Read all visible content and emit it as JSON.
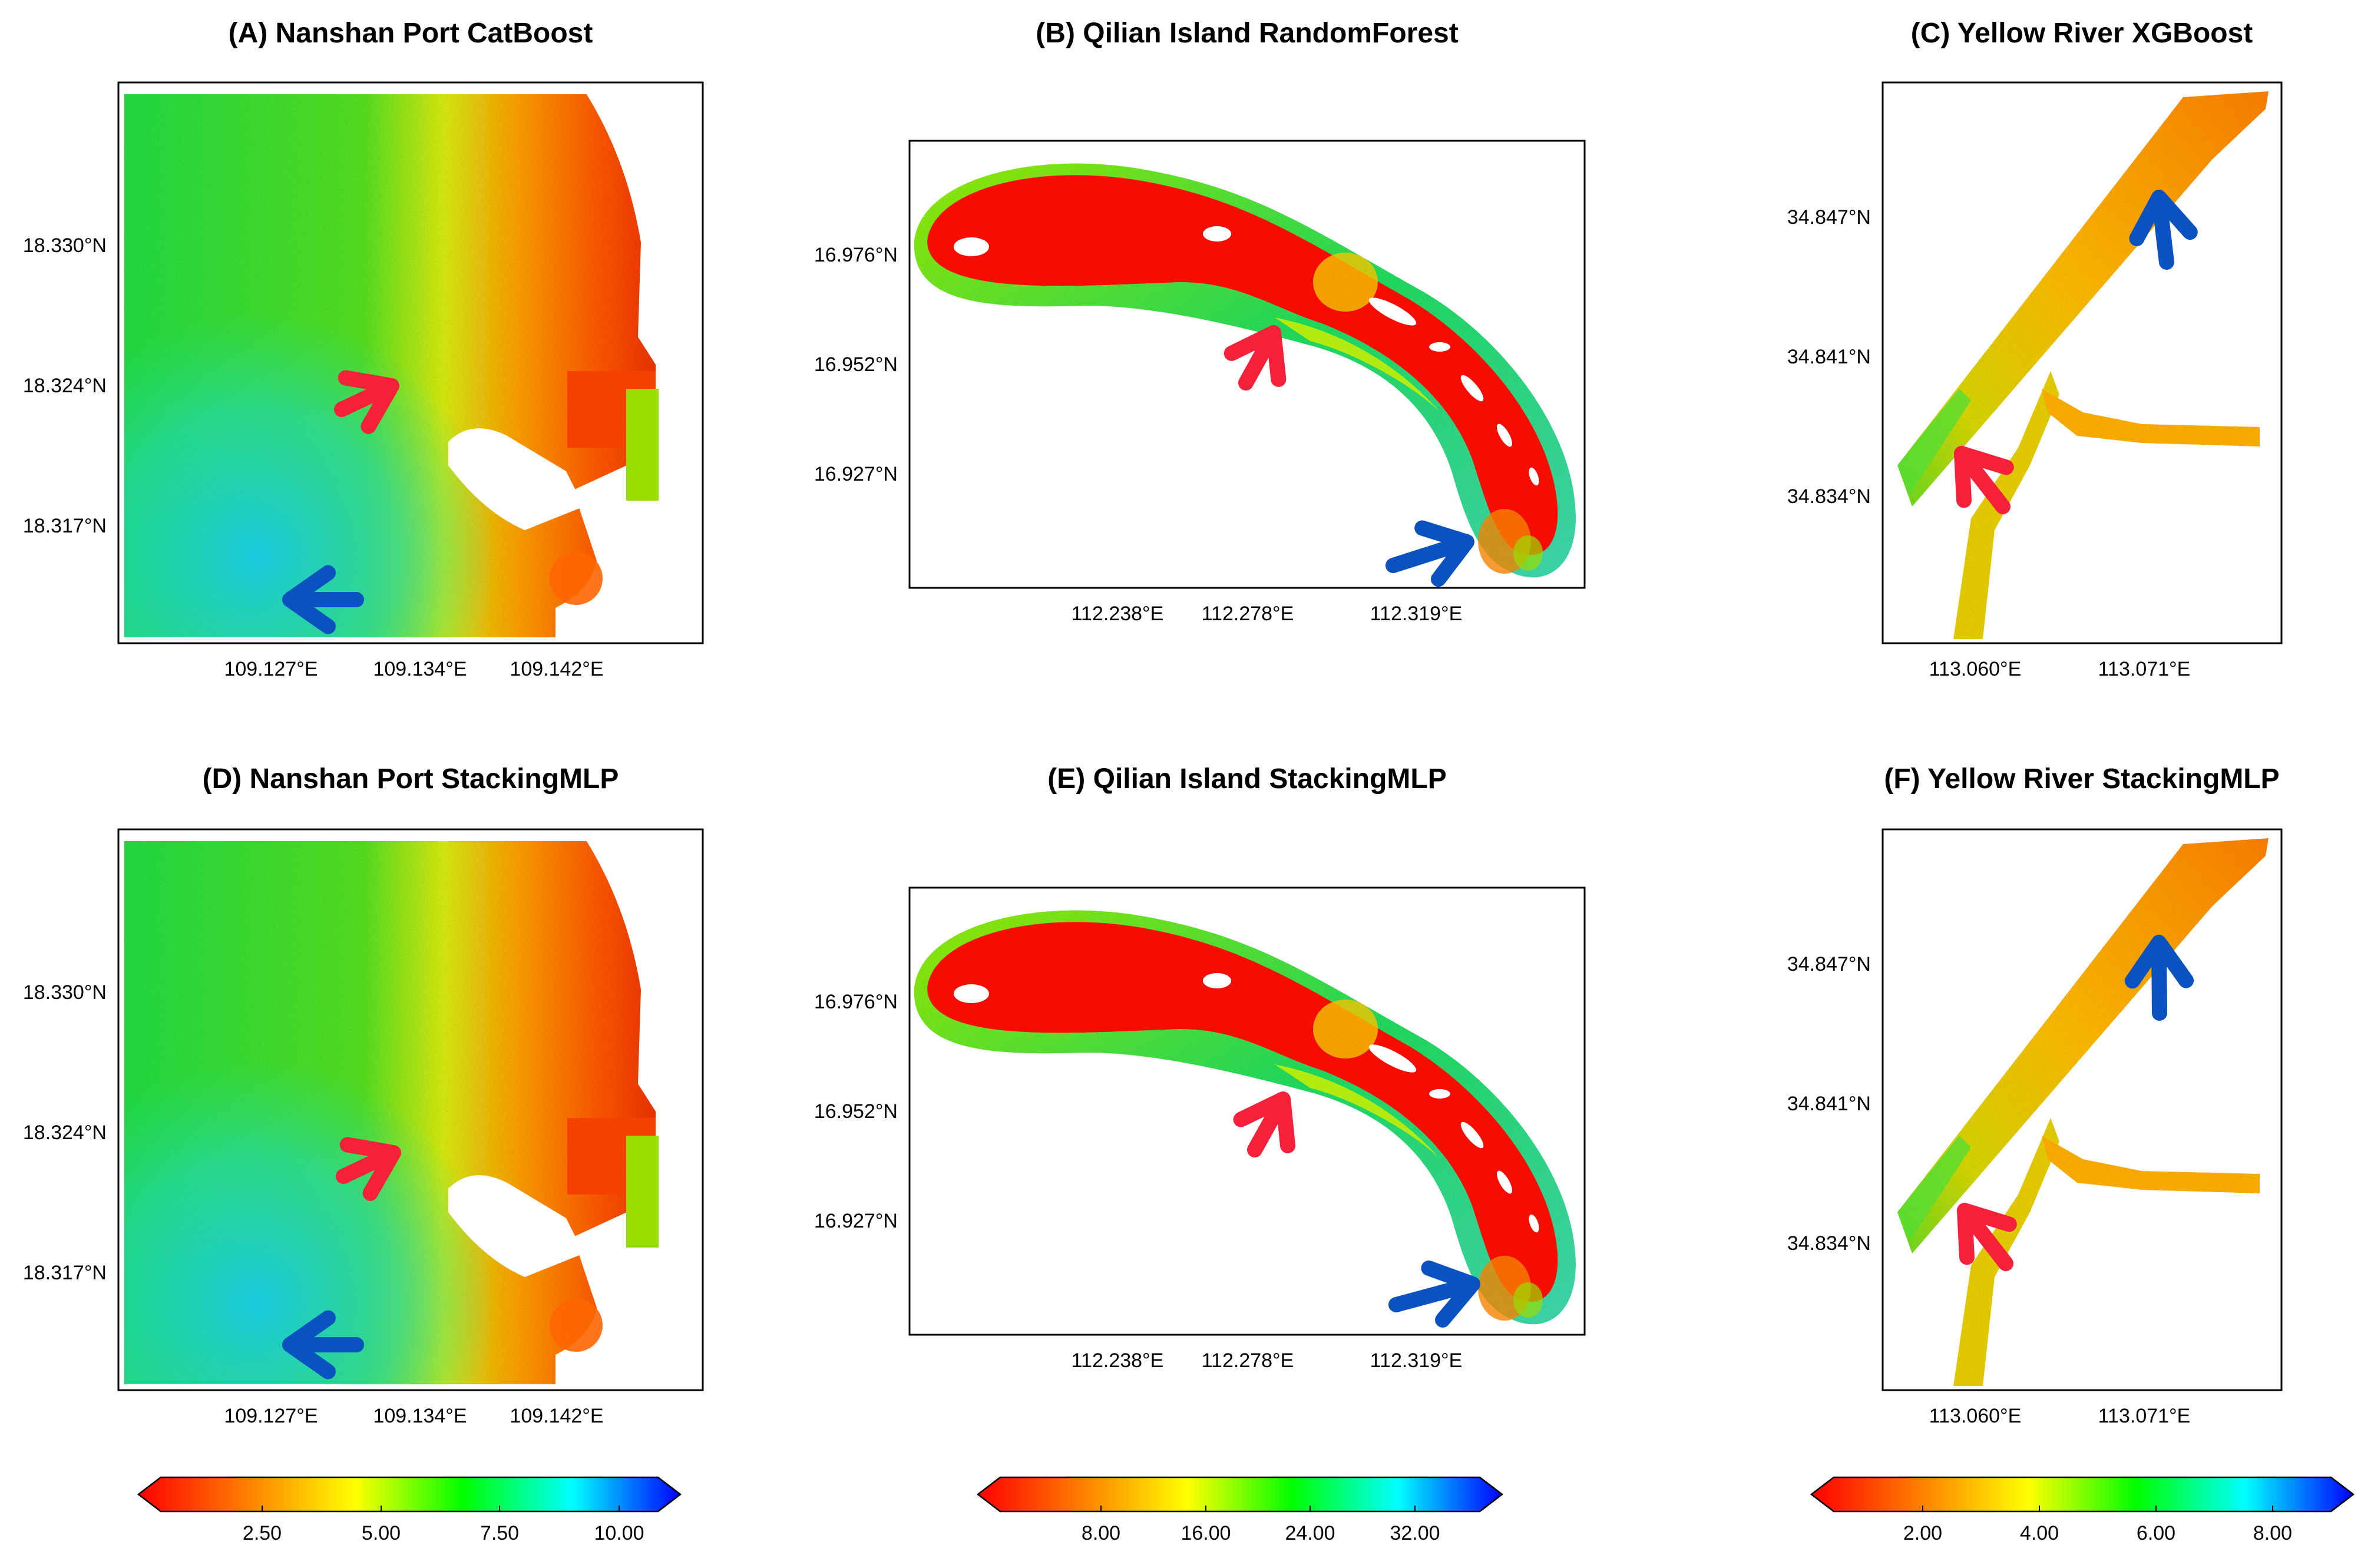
{
  "colors": {
    "scale": [
      "#ff0000",
      "#ff7f00",
      "#ffff00",
      "#00ff00",
      "#00ffff",
      "#0000ff"
    ],
    "red_arrow": "#f5203a",
    "blue_arrow": "#0a52c0"
  },
  "panels": [
    {
      "id": "A",
      "title": "(A) Nanshan Port CatBoost",
      "region": "nanshan",
      "x_ticks": [
        "109.127°E",
        "109.134°E",
        "109.142°E"
      ],
      "y_ticks": [
        "18.330°N",
        "18.324°N",
        "18.317°N"
      ],
      "arrows": [
        {
          "color": "red",
          "icon": "arrow-icon"
        },
        {
          "color": "blue",
          "icon": "arrow-icon"
        }
      ]
    },
    {
      "id": "B",
      "title": "(B) Qilian Island RandomForest",
      "region": "qilian",
      "x_ticks": [
        "112.238°E",
        "112.278°E",
        "112.319°E"
      ],
      "y_ticks": [
        "16.976°N",
        "16.952°N",
        "16.927°N"
      ],
      "arrows": [
        {
          "color": "red",
          "icon": "arrow-icon"
        },
        {
          "color": "blue",
          "icon": "arrow-icon"
        }
      ]
    },
    {
      "id": "C",
      "title": "(C) Yellow River XGBoost",
      "region": "yellow",
      "x_ticks": [
        "113.060°E",
        "113.071°E"
      ],
      "y_ticks": [
        "34.847°N",
        "34.841°N",
        "34.834°N"
      ],
      "arrows": [
        {
          "color": "red",
          "icon": "arrow-icon"
        },
        {
          "color": "blue",
          "icon": "arrow-icon"
        }
      ]
    },
    {
      "id": "D",
      "title": "(D) Nanshan Port StackingMLP",
      "region": "nanshan",
      "x_ticks": [
        "109.127°E",
        "109.134°E",
        "109.142°E"
      ],
      "y_ticks": [
        "18.330°N",
        "18.324°N",
        "18.317°N"
      ],
      "arrows": [
        {
          "color": "red",
          "icon": "arrow-icon"
        },
        {
          "color": "blue",
          "icon": "arrow-icon"
        }
      ]
    },
    {
      "id": "E",
      "title": "(E) Qilian Island StackingMLP",
      "region": "qilian",
      "x_ticks": [
        "112.238°E",
        "112.278°E",
        "112.319°E"
      ],
      "y_ticks": [
        "16.976°N",
        "16.952°N",
        "16.927°N"
      ],
      "arrows": [
        {
          "color": "red",
          "icon": "arrow-icon"
        },
        {
          "color": "blue",
          "icon": "arrow-icon"
        }
      ]
    },
    {
      "id": "F",
      "title": "(F) Yellow River StackingMLP",
      "region": "yellow",
      "x_ticks": [
        "113.060°E",
        "113.071°E"
      ],
      "y_ticks": [
        "34.847°N",
        "34.841°N",
        "34.834°N"
      ],
      "arrows": [
        {
          "color": "red",
          "icon": "arrow-icon"
        },
        {
          "color": "blue",
          "icon": "arrow-icon"
        }
      ]
    }
  ],
  "colorbars": [
    {
      "id": "nanshan",
      "ticks": [
        "2.50",
        "5.00",
        "7.50",
        "10.00"
      ]
    },
    {
      "id": "qilian",
      "ticks": [
        "8.00",
        "16.00",
        "24.00",
        "32.00"
      ]
    },
    {
      "id": "yellow",
      "ticks": [
        "2.00",
        "4.00",
        "6.00",
        "8.00"
      ]
    }
  ]
}
